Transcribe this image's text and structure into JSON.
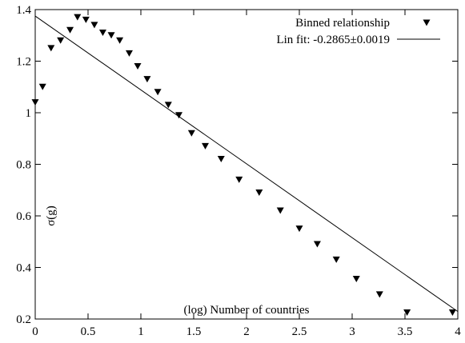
{
  "chart_data": {
    "type": "scatter",
    "title": "",
    "xlabel": "(log) Number of countries",
    "ylabel": "σ(g)",
    "xlim": [
      0,
      4
    ],
    "ylim": [
      0.2,
      1.4
    ],
    "xticks": [
      {
        "value": 0,
        "label": "0"
      },
      {
        "value": 0.5,
        "label": "0.5"
      },
      {
        "value": 1,
        "label": "1"
      },
      {
        "value": 1.5,
        "label": "1.5"
      },
      {
        "value": 2,
        "label": "2"
      },
      {
        "value": 2.5,
        "label": "2.5"
      },
      {
        "value": 3,
        "label": "3"
      },
      {
        "value": 3.5,
        "label": "3.5"
      },
      {
        "value": 4,
        "label": "4"
      }
    ],
    "yticks": [
      {
        "value": 0.2,
        "label": "0.2"
      },
      {
        "value": 0.4,
        "label": "0.4"
      },
      {
        "value": 0.6,
        "label": "0.6"
      },
      {
        "value": 0.8,
        "label": "0.8"
      },
      {
        "value": 1,
        "label": "1"
      },
      {
        "value": 1.2,
        "label": "1.2"
      },
      {
        "value": 1.4,
        "label": "1.4"
      }
    ],
    "grid": false,
    "legend_position": "top-right",
    "series": [
      {
        "name": "Binned relationship",
        "marker": "triangle-down",
        "x": [
          0.0,
          0.07,
          0.15,
          0.24,
          0.33,
          0.4,
          0.48,
          0.56,
          0.64,
          0.72,
          0.8,
          0.89,
          0.97,
          1.06,
          1.16,
          1.26,
          1.36,
          1.48,
          1.61,
          1.76,
          1.93,
          2.12,
          2.32,
          2.5,
          2.67,
          2.85,
          3.04,
          3.26,
          3.52,
          3.95
        ],
        "y": [
          1.04,
          1.1,
          1.25,
          1.28,
          1.32,
          1.37,
          1.36,
          1.34,
          1.31,
          1.3,
          1.28,
          1.23,
          1.18,
          1.13,
          1.08,
          1.03,
          0.99,
          0.92,
          0.87,
          0.82,
          0.74,
          0.69,
          0.62,
          0.55,
          0.49,
          0.43,
          0.355,
          0.295,
          0.225,
          0.225
        ]
      },
      {
        "name": "Lin fit: -0.2865±0.0019",
        "type": "line",
        "x": [
          0,
          4
        ],
        "y": [
          1.375,
          0.229
        ]
      }
    ]
  }
}
